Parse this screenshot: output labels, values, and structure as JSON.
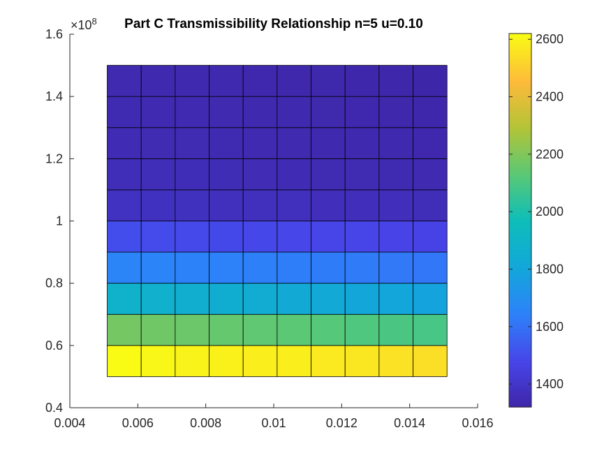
{
  "chart_data": {
    "type": "heatmap",
    "title": "Part C Transmissibility Relationship n=5 u=0.10",
    "xlabel": "",
    "ylabel": "",
    "xlim": [
      0.004,
      0.016
    ],
    "ylim": [
      0.4,
      1.6
    ],
    "x_ticks": [
      0.004,
      0.006,
      0.008,
      0.01,
      0.012,
      0.014,
      0.016
    ],
    "x_tick_labels": [
      "0.004",
      "0.006",
      "0.008",
      "0.01",
      "0.012",
      "0.014",
      "0.016"
    ],
    "y_ticks": [
      0.4,
      0.6,
      0.8,
      1.0,
      1.2,
      1.4,
      1.6
    ],
    "y_tick_labels": [
      "0.4",
      "0.6",
      "0.8",
      "1",
      "1.2",
      "1.4",
      "1.6"
    ],
    "y_exponent": {
      "base": "10",
      "power": "8"
    },
    "x_edges": [
      0.0051,
      0.0061,
      0.0071,
      0.0081,
      0.0091,
      0.0101,
      0.0111,
      0.0121,
      0.0131,
      0.0141,
      0.0151
    ],
    "y_edges": [
      0.5,
      0.6,
      0.7,
      0.8,
      0.9,
      1.0,
      1.1,
      1.2,
      1.3,
      1.4,
      1.5
    ],
    "values": [
      [
        2620,
        2610,
        2600,
        2595,
        2590,
        2585,
        2575,
        2565,
        2555,
        2545
      ],
      [
        2180,
        2170,
        2160,
        2150,
        2140,
        2130,
        2120,
        2110,
        2100,
        2090
      ],
      [
        1880,
        1870,
        1860,
        1850,
        1840,
        1830,
        1820,
        1810,
        1800,
        1790
      ],
      [
        1660,
        1655,
        1650,
        1645,
        1640,
        1635,
        1630,
        1625,
        1620,
        1615
      ],
      [
        1500,
        1495,
        1490,
        1488,
        1485,
        1482,
        1478,
        1475,
        1472,
        1468
      ],
      [
        1380,
        1378,
        1376,
        1374,
        1372,
        1370,
        1368,
        1366,
        1364,
        1362
      ],
      [
        1360,
        1358,
        1356,
        1354,
        1352,
        1350,
        1348,
        1346,
        1344,
        1342
      ],
      [
        1350,
        1348,
        1346,
        1344,
        1342,
        1340,
        1338,
        1336,
        1334,
        1332
      ],
      [
        1345,
        1343,
        1341,
        1339,
        1337,
        1335,
        1333,
        1331,
        1329,
        1327
      ],
      [
        1340,
        1338,
        1336,
        1334,
        1332,
        1330,
        1328,
        1326,
        1324,
        1322
      ]
    ],
    "colorbar": {
      "clim": [
        1320,
        2620
      ],
      "ticks": [
        1400,
        1600,
        1800,
        2000,
        2200,
        2400,
        2600
      ],
      "tick_labels": [
        "1400",
        "1600",
        "1800",
        "2000",
        "2200",
        "2400",
        "2600"
      ],
      "colormap": "parula"
    },
    "grid": false
  }
}
